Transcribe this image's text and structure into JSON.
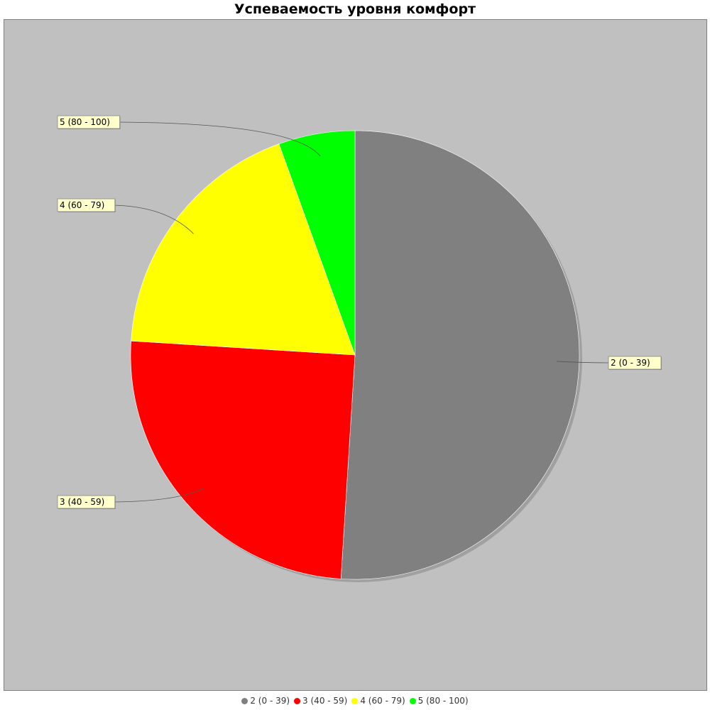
{
  "chart_data": {
    "type": "pie",
    "title": "Успеваемость уровня комфорт",
    "slices": [
      {
        "label": "2 (0 - 39)",
        "value": 51,
        "color": "#808080"
      },
      {
        "label": "3 (40 - 59)",
        "value": 25,
        "color": "#ff0000"
      },
      {
        "label": "4 (60 - 79)",
        "value": 18.5,
        "color": "#ffff00"
      },
      {
        "label": "5 (80 - 100)",
        "value": 5.5,
        "color": "#00ff00"
      }
    ],
    "legend_position": "bottom"
  }
}
